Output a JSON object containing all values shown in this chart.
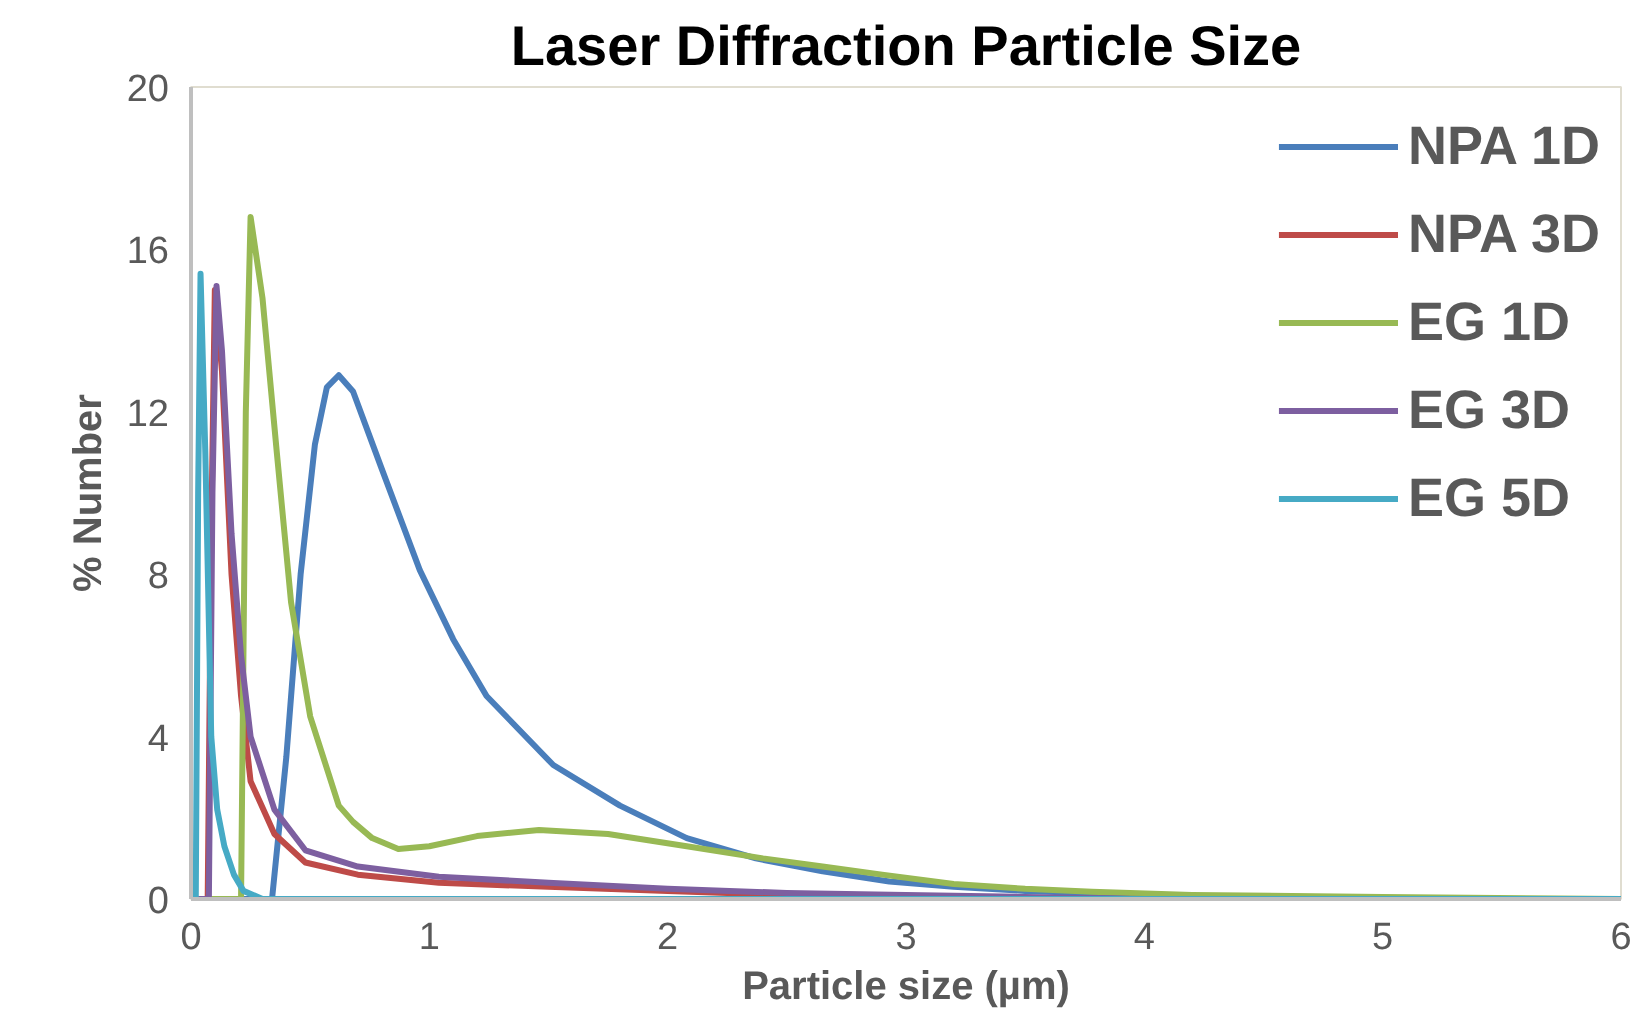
{
  "chart_data": {
    "type": "line",
    "title": "Laser Diffraction Particle Size",
    "xlabel": "Particle size (µm)",
    "ylabel": "% Number",
    "xlim": [
      0,
      6
    ],
    "ylim": [
      0,
      20
    ],
    "xticks": [
      0,
      1,
      2,
      3,
      4,
      5,
      6
    ],
    "yticks": [
      0,
      4,
      8,
      12,
      16,
      20
    ],
    "grid": false,
    "legend": "top right",
    "marker": "none",
    "line_style": "solid",
    "series": [
      {
        "name": "NPA 1D",
        "color": "#4a7ebb",
        "x": [
          0,
          0.34,
          0.4,
          0.46,
          0.52,
          0.57,
          0.62,
          0.68,
          0.8,
          0.96,
          1.1,
          1.24,
          1.52,
          1.8,
          2.08,
          2.37,
          2.65,
          2.93,
          3.2,
          3.5,
          4.0,
          4.5
        ],
        "values": [
          0,
          0,
          3.5,
          8.0,
          11.2,
          12.6,
          12.9,
          12.5,
          10.6,
          8.1,
          6.4,
          5.0,
          3.3,
          2.3,
          1.5,
          1.0,
          0.68,
          0.43,
          0.3,
          0.2,
          0.1,
          0.05
        ]
      },
      {
        "name": "NPA 3D",
        "color": "#be4b48",
        "x": [
          0,
          0.07,
          0.085,
          0.1,
          0.13,
          0.17,
          0.21,
          0.25,
          0.35,
          0.48,
          0.7,
          1.04,
          1.5,
          2.0,
          2.5,
          3.0,
          6.0
        ],
        "values": [
          0,
          0,
          9.0,
          15.0,
          13.0,
          8.0,
          5.0,
          2.9,
          1.6,
          0.9,
          0.6,
          0.4,
          0.3,
          0.2,
          0.1,
          0,
          0
        ]
      },
      {
        "name": "EG 1D",
        "color": "#98b954",
        "x": [
          0,
          0.21,
          0.23,
          0.25,
          0.3,
          0.36,
          0.42,
          0.5,
          0.62,
          0.68,
          0.76,
          0.87,
          1.0,
          1.2,
          1.46,
          1.75,
          2.08,
          2.4,
          2.65,
          2.9,
          3.2,
          3.5,
          3.78,
          4.2,
          5.0,
          6.0
        ],
        "values": [
          0,
          0,
          12.0,
          16.8,
          14.8,
          11.0,
          7.3,
          4.5,
          2.3,
          1.9,
          1.5,
          1.23,
          1.3,
          1.55,
          1.7,
          1.6,
          1.3,
          1.0,
          0.8,
          0.6,
          0.37,
          0.25,
          0.18,
          0.1,
          0.05,
          0
        ]
      },
      {
        "name": "EG 3D",
        "color": "#7d5fa0",
        "x": [
          0,
          0.075,
          0.09,
          0.107,
          0.13,
          0.17,
          0.21,
          0.25,
          0.35,
          0.48,
          0.7,
          1.04,
          1.5,
          2.0,
          2.5,
          3.0,
          3.5,
          4.0,
          6.0
        ],
        "values": [
          0,
          0,
          10.0,
          15.1,
          13.5,
          9.0,
          6.0,
          4.0,
          2.2,
          1.2,
          0.8,
          0.55,
          0.4,
          0.25,
          0.15,
          0.1,
          0.05,
          0,
          0
        ]
      },
      {
        "name": "EG 5D",
        "color": "#46aac5",
        "x": [
          0,
          0.02,
          0.03,
          0.04,
          0.06,
          0.085,
          0.11,
          0.14,
          0.18,
          0.22,
          0.3,
          6.0
        ],
        "values": [
          0,
          0,
          10.0,
          15.4,
          11.0,
          4.0,
          2.2,
          1.3,
          0.6,
          0.2,
          0,
          0
        ]
      }
    ]
  }
}
